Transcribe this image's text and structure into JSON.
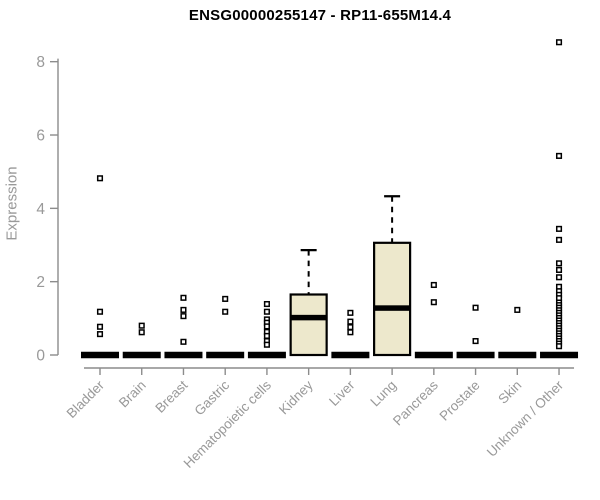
{
  "chart_data": {
    "type": "boxplot",
    "title": "ENSG00000255147 - RP11-655M14.4",
    "ylabel": "Expression",
    "xlabel": "",
    "ylim": [
      0,
      8.6
    ],
    "yticks": [
      0,
      2,
      4,
      6,
      8
    ],
    "grid": false,
    "legend": "none",
    "colors": {
      "box_fill": "#EDE8CC",
      "box_border": "#000000",
      "median": "#000000",
      "outlier_stroke": "#000000",
      "outlier_fill": "#ffffff",
      "axis": "#8C8C8C",
      "tick_label": "#999999",
      "title": "#000000"
    },
    "categories": [
      "Bladder",
      "Brain",
      "Breast",
      "Gastric",
      "Hematopoietic cells",
      "Kidney",
      "Liver",
      "Lung",
      "Pancreas",
      "Prostate",
      "Skin",
      "Unknown / Other"
    ],
    "series": [
      {
        "name": "Bladder",
        "q1": 0,
        "median": 0,
        "q3": 0,
        "whisker_low": 0,
        "whisker_high": 0,
        "outliers": [
          4.82,
          1.18,
          0.77,
          0.57
        ]
      },
      {
        "name": "Brain",
        "q1": 0,
        "median": 0,
        "q3": 0,
        "whisker_low": 0,
        "whisker_high": 0,
        "outliers": [
          0.8,
          0.62
        ]
      },
      {
        "name": "Breast",
        "q1": 0,
        "median": 0,
        "q3": 0,
        "whisker_low": 0,
        "whisker_high": 0,
        "outliers": [
          1.56,
          1.23,
          1.06,
          0.36
        ]
      },
      {
        "name": "Gastric",
        "q1": 0,
        "median": 0,
        "q3": 0,
        "whisker_low": 0,
        "whisker_high": 0,
        "outliers": [
          1.53,
          1.18
        ]
      },
      {
        "name": "Hematopoietic cells",
        "q1": 0,
        "median": 0,
        "q3": 0,
        "whisker_low": 0,
        "whisker_high": 0,
        "outliers": [
          1.39,
          1.18,
          0.97,
          0.88,
          0.78,
          0.63,
          0.52,
          0.38,
          0.28
        ]
      },
      {
        "name": "Kidney",
        "q1": 0,
        "median": 1.02,
        "q3": 1.65,
        "whisker_low": 0,
        "whisker_high": 2.86,
        "outliers": []
      },
      {
        "name": "Liver",
        "q1": 0,
        "median": 0,
        "q3": 0,
        "whisker_low": 0,
        "whisker_high": 0,
        "outliers": [
          1.15,
          0.91,
          0.76,
          0.62
        ]
      },
      {
        "name": "Lung",
        "q1": 0,
        "median": 1.28,
        "q3": 3.06,
        "whisker_low": 0,
        "whisker_high": 4.33,
        "outliers": []
      },
      {
        "name": "Pancreas",
        "q1": 0,
        "median": 0,
        "q3": 0,
        "whisker_low": 0,
        "whisker_high": 0,
        "outliers": [
          1.91,
          1.44
        ]
      },
      {
        "name": "Prostate",
        "q1": 0,
        "median": 0,
        "q3": 0,
        "whisker_low": 0,
        "whisker_high": 0,
        "outliers": [
          1.29,
          0.38
        ]
      },
      {
        "name": "Skin",
        "q1": 0,
        "median": 0,
        "q3": 0,
        "whisker_low": 0,
        "whisker_high": 0,
        "outliers": [
          1.23
        ]
      },
      {
        "name": "Unknown / Other",
        "q1": 0,
        "median": 0,
        "q3": 0,
        "whisker_low": 0,
        "whisker_high": 0,
        "outliers": [
          8.53,
          5.43,
          3.44,
          3.14,
          2.5,
          2.32,
          2.12,
          1.86,
          1.74,
          1.64,
          1.55,
          1.43,
          1.36,
          1.29,
          1.22,
          1.15,
          1.08,
          1.01,
          0.94,
          0.87,
          0.8,
          0.73,
          0.66,
          0.59,
          0.52,
          0.45,
          0.38,
          0.31,
          0.24
        ]
      }
    ]
  }
}
